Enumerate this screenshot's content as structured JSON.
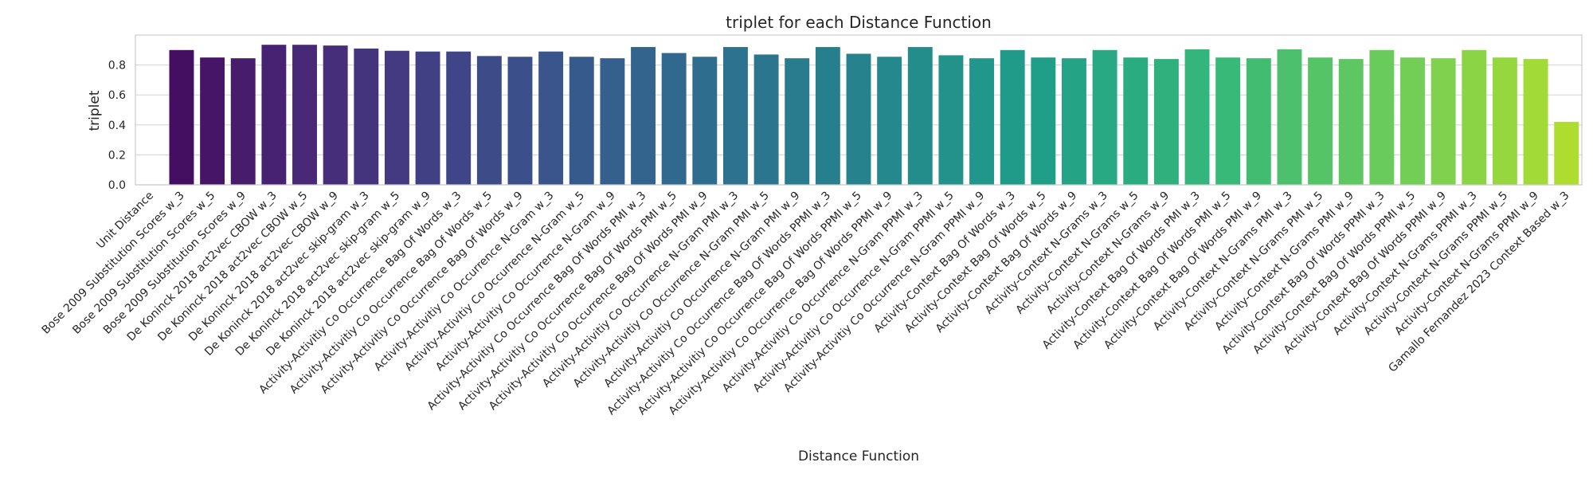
{
  "chart_data": {
    "type": "bar",
    "title": "triplet for each Distance Function",
    "xlabel": "Distance Function",
    "ylabel": "triplet",
    "ylim": [
      0,
      1.0
    ],
    "yticks": [
      "0.0",
      "0.2",
      "0.4",
      "0.6",
      "0.8"
    ],
    "ytick_values": [
      0.0,
      0.2,
      0.4,
      0.6,
      0.8
    ],
    "grid": true,
    "palette": "viridis",
    "categories": [
      "Unit Distance",
      "Bose 2009 Substitution Scores w_3",
      "Bose 2009 Substitution Scores w_5",
      "Bose 2009 Substitution Scores w_9",
      "De Koninck 2018 act2vec CBOW w_3",
      "De Koninck 2018 act2vec CBOW w_5",
      "De Koninck 2018 act2vec CBOW w_9",
      "De Koninck 2018 act2vec skip-gram w_3",
      "De Koninck 2018 act2vec skip-gram w_5",
      "De Koninck 2018 act2vec skip-gram w_9",
      "Activity-Activitiy Co Occurrence Bag Of Words w_3",
      "Activity-Activitiy Co Occurrence Bag Of Words w_5",
      "Activity-Activitiy Co Occurrence Bag Of Words w_9",
      "Activity-Activitiy Co Occurrence N-Gram w_3",
      "Activity-Activitiy Co Occurrence N-Gram w_5",
      "Activity-Activitiy Co Occurrence N-Gram w_9",
      "Activity-Activitiy Co Occurrence Bag Of Words PMI w_3",
      "Activity-Activitiy Co Occurrence Bag Of Words PMI w_5",
      "Activity-Activitiy Co Occurrence Bag Of Words PMI w_9",
      "Activity-Activitiy Co Occurrence N-Gram PMI w_3",
      "Activity-Activitiy Co Occurrence N-Gram PMI w_5",
      "Activity-Activitiy Co Occurrence N-Gram PMI w_9",
      "Activity-Activitiy Co Occurrence Bag Of Words PPMI w_3",
      "Activity-Activitiy Co Occurrence Bag Of Words PPMI w_5",
      "Activity-Activitiy Co Occurrence Bag Of Words PPMI w_9",
      "Activity-Activitiy Co Occurrence N-Gram PPMI w_3",
      "Activity-Activitiy Co Occurrence N-Gram PPMI w_5",
      "Activity-Activitiy Co Occurrence N-Gram PPMI w_9",
      "Activity-Context Bag Of Words w_3",
      "Activity-Context Bag Of Words w_5",
      "Activity-Context Bag Of Words w_9",
      "Activity-Context N-Grams w_3",
      "Activity-Context N-Grams w_5",
      "Activity-Context N-Grams w_9",
      "Activity-Context Bag Of Words PMI w_3",
      "Activity-Context Bag Of Words PMI w_5",
      "Activity-Context Bag Of Words PMI w_9",
      "Activity-Context N-Grams PMI w_3",
      "Activity-Context N-Grams PMI w_5",
      "Activity-Context N-Grams PMI w_9",
      "Activity-Context Bag Of Words PPMI w_3",
      "Activity-Context Bag Of Words PPMI w_5",
      "Activity-Context Bag Of Words PPMI w_9",
      "Activity-Context N-Grams PPMI w_3",
      "Activity-Context N-Grams PPMI w_5",
      "Activity-Context N-Grams PPMI w_9",
      "Gamallo Fernandez 2023 Context Based w_3"
    ],
    "values": [
      0.0,
      0.9,
      0.85,
      0.845,
      0.935,
      0.935,
      0.93,
      0.91,
      0.895,
      0.89,
      0.89,
      0.86,
      0.855,
      0.89,
      0.855,
      0.845,
      0.92,
      0.88,
      0.855,
      0.92,
      0.87,
      0.845,
      0.92,
      0.875,
      0.855,
      0.92,
      0.865,
      0.845,
      0.9,
      0.85,
      0.845,
      0.9,
      0.85,
      0.84,
      0.905,
      0.85,
      0.845,
      0.905,
      0.85,
      0.84,
      0.9,
      0.85,
      0.845,
      0.9,
      0.85,
      0.84,
      0.42
    ]
  }
}
